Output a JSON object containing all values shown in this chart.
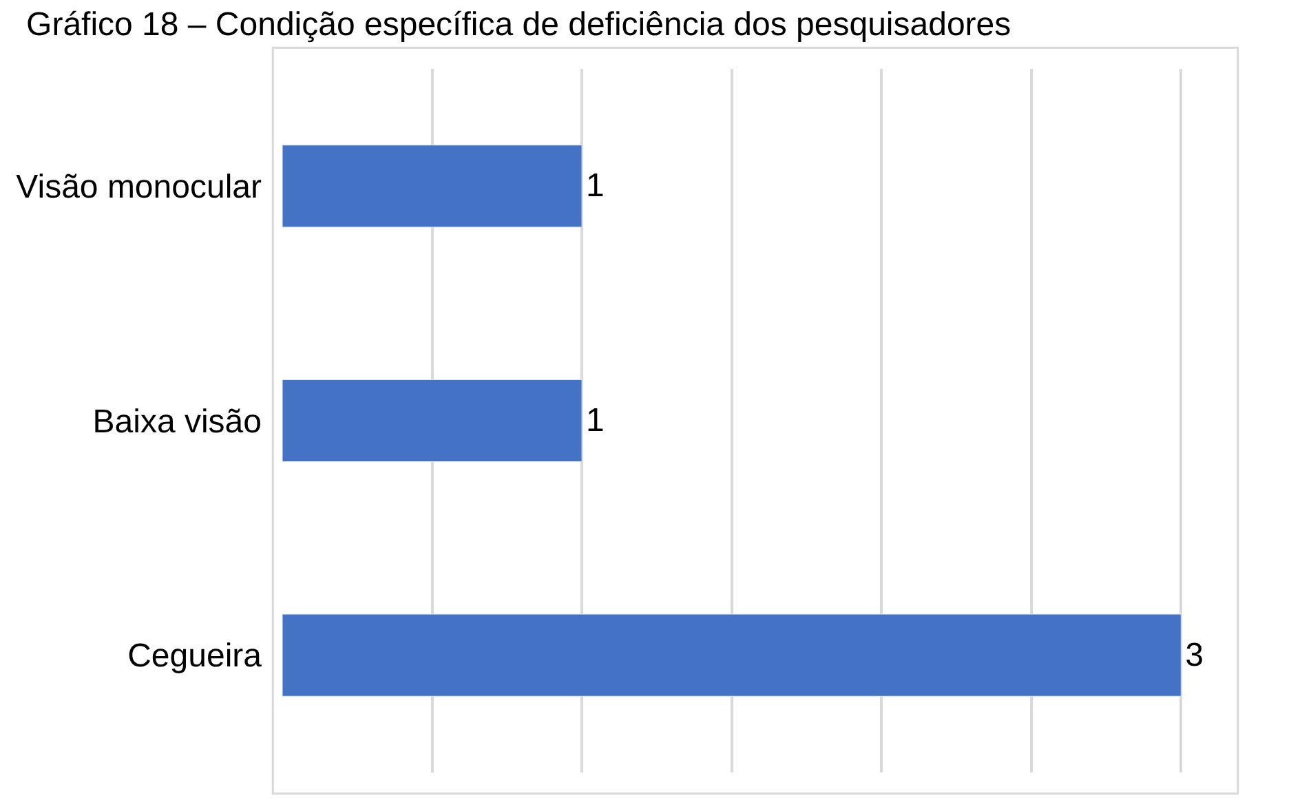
{
  "chart_data": {
    "type": "bar",
    "orientation": "horizontal",
    "title": "Gráfico 18 – Condição específica de deficiência dos pesquisadores",
    "categories": [
      "Visão monocular",
      "Baixa visão",
      "Cegueira"
    ],
    "values": [
      1,
      1,
      3
    ],
    "color": "#4472c4",
    "tick_labels": "y",
    "grid": "x",
    "data_labels": true,
    "legend": false
  }
}
